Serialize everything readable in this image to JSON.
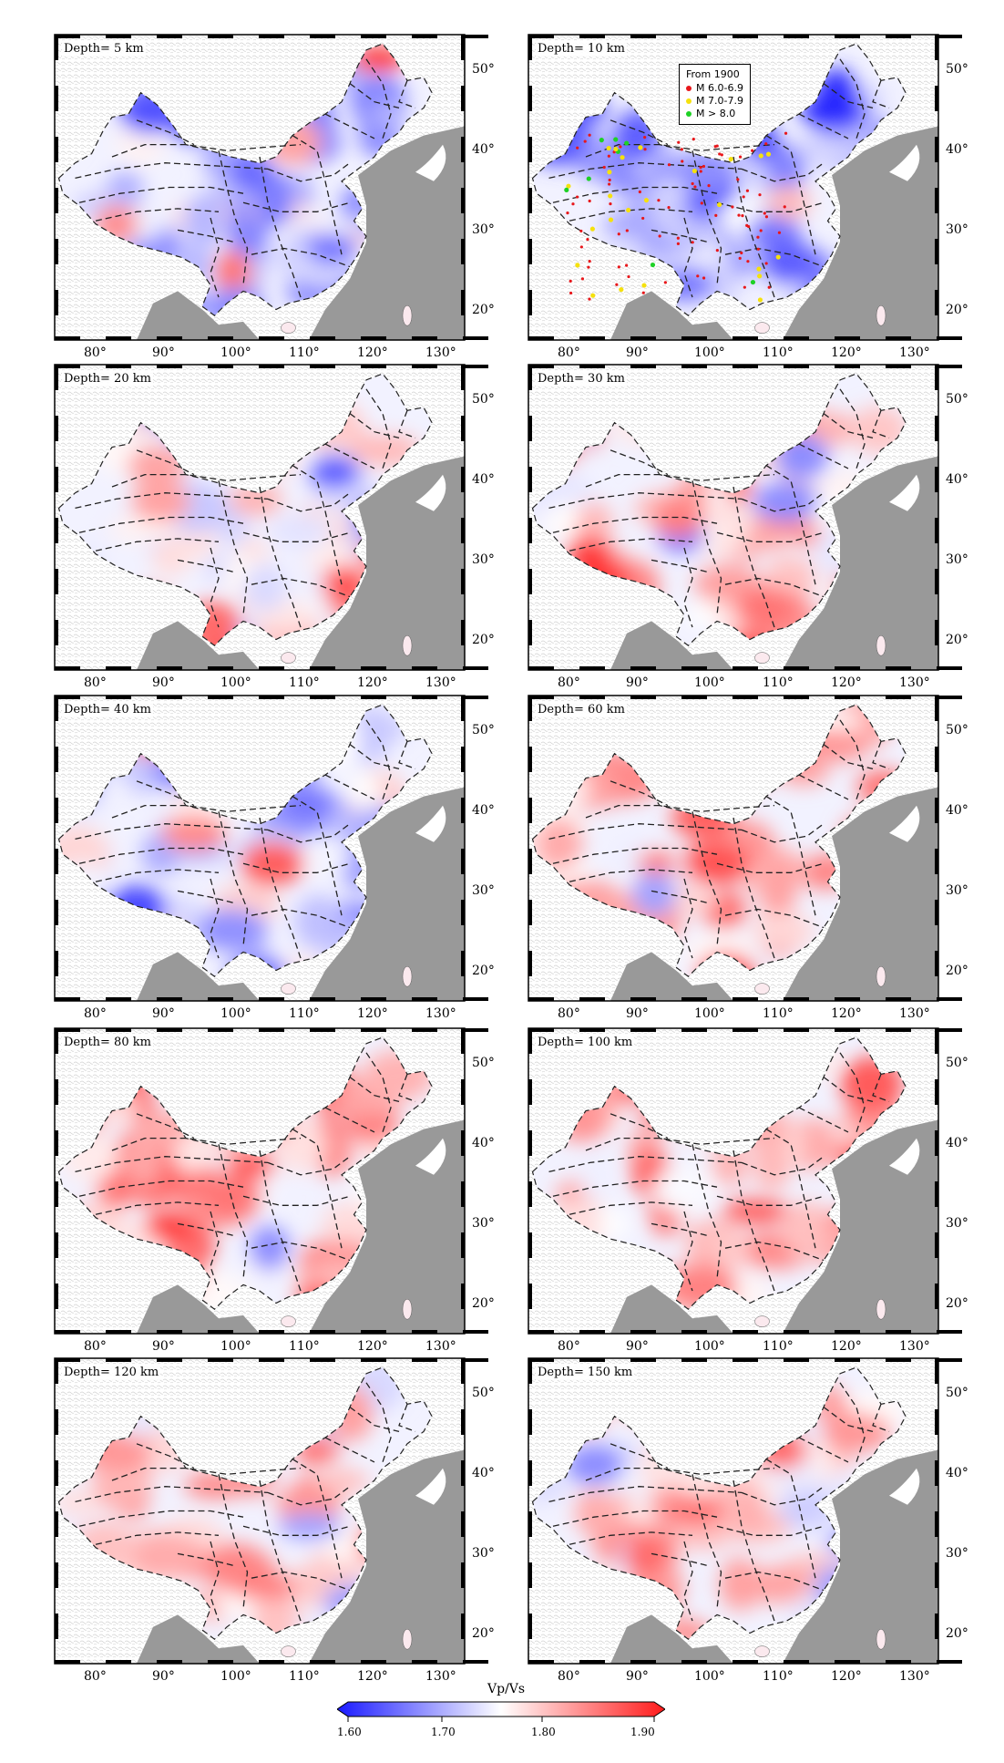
{
  "panels": [
    {
      "depth_label": "Depth= 5 km",
      "show_lat": true,
      "show_legend": false,
      "seed": 11,
      "blobs": [
        [
          -0.75,
          0.25
        ],
        [
          0.85,
          0.08
        ],
        [
          -0.85,
          0.04
        ],
        [
          -0.8,
          0.15
        ],
        [
          -0.7,
          0.3
        ],
        [
          -0.65,
          0.45
        ],
        [
          -0.8,
          0.6
        ],
        [
          -0.6,
          0.7
        ],
        [
          -0.7,
          0.85
        ],
        [
          0.5,
          0.62
        ],
        [
          0.6,
          0.78
        ],
        [
          -0.5,
          0.9
        ],
        [
          0.4,
          0.35
        ]
      ]
    },
    {
      "depth_label": "Depth= 10 km",
      "show_lat": true,
      "show_legend": true,
      "seed": 23,
      "blobs": [
        [
          -0.9,
          0.18
        ],
        [
          -0.95,
          0.25
        ],
        [
          -0.8,
          0.35
        ],
        [
          -0.85,
          0.5
        ],
        [
          -0.6,
          0.65
        ],
        [
          -0.7,
          0.75
        ],
        [
          -0.8,
          0.9
        ],
        [
          -0.5,
          0.45
        ],
        [
          0.3,
          0.55
        ],
        [
          -0.6,
          0.82
        ]
      ]
    },
    {
      "depth_label": "Depth= 20 km",
      "show_lat": true,
      "show_legend": false,
      "seed": 37,
      "blobs": [
        [
          -0.6,
          0.2
        ],
        [
          -0.7,
          0.35
        ],
        [
          0.8,
          0.62
        ],
        [
          0.75,
          0.72
        ],
        [
          0.6,
          0.78
        ],
        [
          0.65,
          0.85
        ],
        [
          -0.5,
          0.5
        ],
        [
          0.4,
          0.45
        ],
        [
          0.7,
          0.95
        ],
        [
          -0.5,
          0.15
        ]
      ]
    },
    {
      "depth_label": "Depth= 30 km",
      "show_lat": true,
      "show_legend": false,
      "seed": 41,
      "blobs": [
        [
          0.5,
          0.2
        ],
        [
          -0.5,
          0.3
        ],
        [
          0.85,
          0.62
        ],
        [
          0.9,
          0.7
        ],
        [
          0.8,
          0.82
        ],
        [
          -0.6,
          0.55
        ],
        [
          0.55,
          0.5
        ],
        [
          0.6,
          0.8
        ],
        [
          -0.5,
          0.45
        ],
        [
          0.85,
          0.93
        ]
      ]
    },
    {
      "depth_label": "Depth= 40 km",
      "show_lat": true,
      "show_legend": false,
      "seed": 53,
      "blobs": [
        [
          0.5,
          0.15
        ],
        [
          -0.6,
          0.35
        ],
        [
          -0.8,
          0.7
        ],
        [
          -0.85,
          0.78
        ],
        [
          -0.9,
          0.85
        ],
        [
          0.7,
          0.55
        ],
        [
          -0.6,
          0.92
        ],
        [
          0.5,
          0.45
        ],
        [
          -0.5,
          0.25
        ]
      ]
    },
    {
      "depth_label": "Depth= 60 km",
      "show_lat": true,
      "show_legend": false,
      "seed": 67,
      "blobs": [
        [
          0.6,
          0.1
        ],
        [
          0.6,
          0.2
        ],
        [
          0.7,
          0.4
        ],
        [
          0.75,
          0.55
        ],
        [
          0.6,
          0.7
        ],
        [
          0.85,
          0.92
        ],
        [
          -0.4,
          0.65
        ],
        [
          0.5,
          0.85
        ],
        [
          0.6,
          0.3
        ]
      ]
    },
    {
      "depth_label": "Depth= 80 km",
      "show_lat": true,
      "show_legend": false,
      "seed": 79,
      "blobs": [
        [
          0.8,
          0.18
        ],
        [
          0.6,
          0.3
        ],
        [
          0.7,
          0.45
        ],
        [
          0.85,
          0.65
        ],
        [
          0.9,
          0.78
        ],
        [
          0.7,
          0.88
        ],
        [
          0.6,
          0.55
        ],
        [
          -0.5,
          0.72
        ],
        [
          0.7,
          0.95
        ]
      ]
    },
    {
      "depth_label": "Depth= 100 km",
      "show_lat": true,
      "show_legend": false,
      "seed": 83,
      "blobs": [
        [
          0.85,
          0.12
        ],
        [
          0.75,
          0.3
        ],
        [
          0.7,
          0.45
        ],
        [
          0.7,
          0.6
        ],
        [
          0.6,
          0.75
        ],
        [
          0.55,
          0.85
        ],
        [
          -0.4,
          0.9
        ],
        [
          0.6,
          0.2
        ]
      ]
    },
    {
      "depth_label": "Depth= 120 km",
      "show_lat": true,
      "show_legend": false,
      "seed": 97,
      "blobs": [
        [
          0.7,
          0.12
        ],
        [
          0.6,
          0.3
        ],
        [
          0.6,
          0.5
        ],
        [
          0.65,
          0.6
        ],
        [
          0.55,
          0.75
        ],
        [
          -0.45,
          0.2
        ],
        [
          -0.4,
          0.55
        ],
        [
          0.5,
          0.85
        ],
        [
          -0.4,
          0.8
        ]
      ]
    },
    {
      "depth_label": "Depth= 150 km",
      "show_lat": true,
      "show_legend": false,
      "seed": 101,
      "blobs": [
        [
          0.7,
          0.15
        ],
        [
          0.65,
          0.3
        ],
        [
          0.6,
          0.5
        ],
        [
          0.65,
          0.65
        ],
        [
          0.55,
          0.8
        ],
        [
          -0.5,
          0.35
        ],
        [
          -0.45,
          0.6
        ],
        [
          0.5,
          0.9
        ],
        [
          -0.4,
          0.75
        ]
      ]
    }
  ],
  "lon_ticks": [
    "80°",
    "90°",
    "100°",
    "110°",
    "120°",
    "130°"
  ],
  "lat_ticks": [
    "50°",
    "40°",
    "30°",
    "20°"
  ],
  "legend": {
    "title": "From 1900",
    "items": [
      {
        "label": "M 6.0-6.9",
        "color": "#e8171b"
      },
      {
        "label": "M 7.0-7.9",
        "color": "#f5e10e"
      },
      {
        "label": "M > 8.0",
        "color": "#1ed125"
      }
    ]
  },
  "colorbar": {
    "title": "Vp/Vs",
    "ticks": [
      "1.60",
      "1.70",
      "1.80",
      "1.90"
    ],
    "low_color": "#1a1aff",
    "mid_color": "#ffffff",
    "high_color": "#ff1a1a"
  },
  "colors": {
    "ocean": "#999999",
    "land_texture": "#cfcfcf",
    "frame": "#000000",
    "fault_line": "#222222"
  }
}
